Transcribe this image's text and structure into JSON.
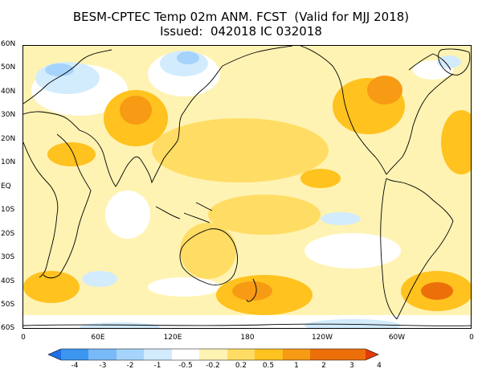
{
  "title": {
    "line1": "BESM-CPTEC Temp 02m ANM. FCST  (Valid for MJJ 2018)",
    "line2": "Issued:  042018 IC 032018"
  },
  "latitude_labels": [
    "60N",
    "50N",
    "40N",
    "30N",
    "20N",
    "10N",
    "EQ",
    "10S",
    "20S",
    "30S",
    "40S",
    "50S",
    "60S"
  ],
  "longitude_labels": [
    "0",
    "60E",
    "120E",
    "180",
    "120W",
    "60W",
    "0"
  ],
  "colorbar": {
    "levels": [
      "-4",
      "-3",
      "-2",
      "-1",
      "-0.5",
      "-0.2",
      "0.2",
      "0.5",
      "1",
      "2",
      "3",
      "4"
    ],
    "colors": [
      "#1e6ee6",
      "#3c96f0",
      "#78b9f7",
      "#a5d3fb",
      "#d2ebfd",
      "#ffffff",
      "#fff3b3",
      "#ffdc64",
      "#ffc21e",
      "#f79a14",
      "#ec6f0a",
      "#e13c0a"
    ]
  },
  "map_colors": {
    "background": "#fff3b3",
    "weak_warm": "#ffdc64",
    "warm": "#ffc21e",
    "strong_warm": "#f79a14",
    "hot": "#ec6f0a",
    "neutral": "#ffffff",
    "cool": "#d2ebfd",
    "cold": "#a5d3fb",
    "coast": "#000000"
  }
}
